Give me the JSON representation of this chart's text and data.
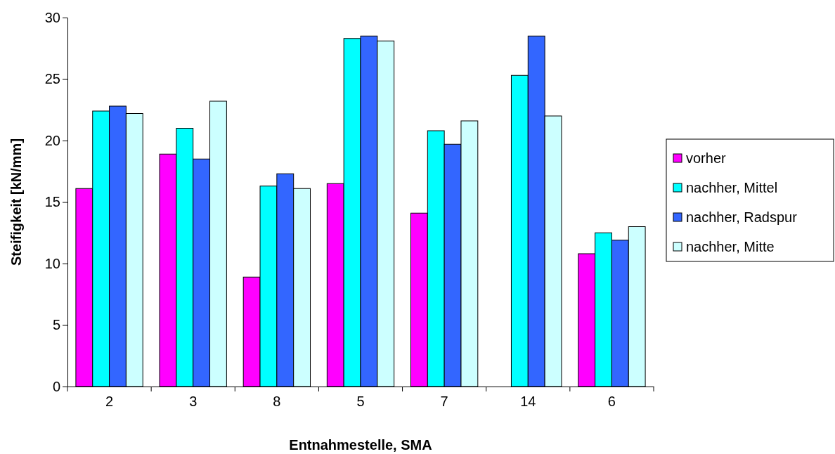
{
  "chart_data": {
    "type": "bar",
    "xlabel": "Entnahmestelle, SMA",
    "ylabel": "Steifigkeit [kN/mm]",
    "categories": [
      "2",
      "3",
      "8",
      "5",
      "7",
      "14",
      "6"
    ],
    "series": [
      {
        "name": "vorher",
        "color": "#ff00ff",
        "values": [
          16.1,
          18.9,
          8.9,
          16.5,
          14.1,
          null,
          10.8
        ]
      },
      {
        "name": "nachher, Mittel",
        "color": "#00ffff",
        "values": [
          22.4,
          21.0,
          16.3,
          28.3,
          20.8,
          25.3,
          12.5
        ]
      },
      {
        "name": "nachher, Radspur",
        "color": "#3366ff",
        "values": [
          22.8,
          18.5,
          17.3,
          28.5,
          19.7,
          28.5,
          11.9
        ]
      },
      {
        "name": "nachher, Mitte",
        "color": "#ccffff",
        "values": [
          22.2,
          23.2,
          16.1,
          28.1,
          21.6,
          22.0,
          13.0
        ]
      }
    ],
    "ylim": [
      0,
      30
    ],
    "yticks": [
      0,
      5,
      10,
      15,
      20,
      25,
      30
    ],
    "grid": false,
    "legend": "right"
  }
}
